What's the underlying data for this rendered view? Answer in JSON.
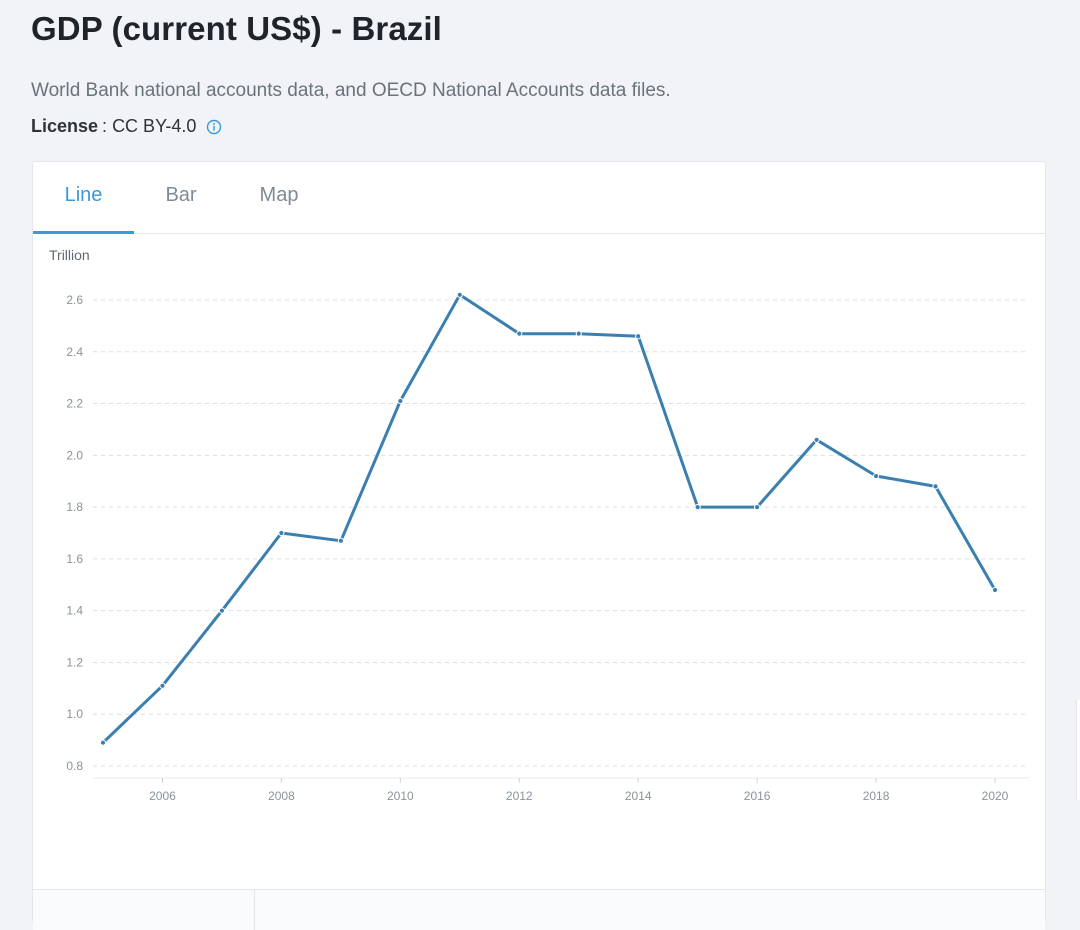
{
  "header": {
    "title": "GDP (current US$) - Brazil",
    "source": "World Bank national accounts data, and OECD National Accounts data files.",
    "license_label": "License",
    "license_sep": ":",
    "license_value": "CC BY-4.0"
  },
  "tabs": [
    {
      "label": "Line",
      "active": true
    },
    {
      "label": "Bar",
      "active": false
    },
    {
      "label": "Map",
      "active": false
    }
  ],
  "colors": {
    "accent": "#3a9ad9",
    "line": "#3a7fb0",
    "grid": "#dcdfe3"
  },
  "icons": {
    "license_info": "info-circle-icon"
  },
  "chart_data": {
    "type": "line",
    "title": "",
    "xlabel": "",
    "ylabel": "Trillion",
    "ylim": [
      0.8,
      2.6
    ],
    "yticks": [
      "0.8",
      "1.0",
      "1.2",
      "1.4",
      "1.6",
      "1.8",
      "2.0",
      "2.2",
      "2.4",
      "2.6"
    ],
    "xticks": [
      "2006",
      "2008",
      "2010",
      "2012",
      "2014",
      "2016",
      "2018",
      "2020"
    ],
    "grid": true,
    "series": [
      {
        "x": [
          2005,
          2006,
          2007,
          2008,
          2009,
          2010,
          2011,
          2012,
          2013,
          2014,
          2015,
          2016,
          2017,
          2018,
          2019,
          2020
        ],
        "values": [
          0.89,
          1.11,
          1.4,
          1.7,
          1.67,
          2.21,
          2.62,
          2.47,
          2.47,
          2.46,
          1.8,
          1.8,
          2.06,
          1.92,
          1.88,
          1.48
        ]
      }
    ]
  }
}
